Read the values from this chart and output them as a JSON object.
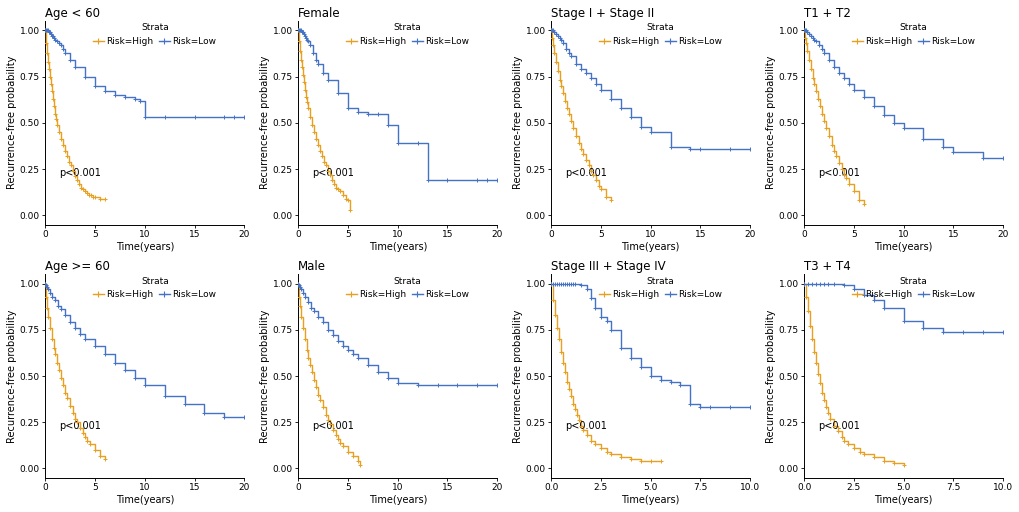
{
  "panels": [
    {
      "title": "Age < 60",
      "xlabel": "Time(years)",
      "ylabel": "Recurrence-free probability",
      "xlim": [
        0,
        20
      ],
      "xticks": [
        0,
        5,
        10,
        15,
        20
      ],
      "ylim": [
        -0.05,
        1.05
      ],
      "yticks": [
        0.0,
        0.25,
        0.5,
        0.75,
        1.0
      ],
      "pvalue": "p<0.001",
      "high_t": [
        0,
        0.1,
        0.2,
        0.3,
        0.4,
        0.5,
        0.6,
        0.7,
        0.8,
        0.9,
        1.0,
        1.1,
        1.2,
        1.4,
        1.6,
        1.8,
        2.0,
        2.2,
        2.4,
        2.6,
        2.8,
        3.0,
        3.2,
        3.4,
        3.6,
        3.8,
        4.0,
        4.2,
        4.4,
        4.6,
        4.8,
        5.0,
        5.5,
        6.0
      ],
      "high_s": [
        1.0,
        0.93,
        0.88,
        0.83,
        0.79,
        0.75,
        0.71,
        0.67,
        0.63,
        0.59,
        0.55,
        0.52,
        0.49,
        0.45,
        0.41,
        0.38,
        0.35,
        0.32,
        0.29,
        0.27,
        0.24,
        0.21,
        0.19,
        0.17,
        0.15,
        0.14,
        0.13,
        0.12,
        0.11,
        0.11,
        0.1,
        0.1,
        0.09,
        0.09
      ],
      "low_t": [
        0,
        0.1,
        0.2,
        0.3,
        0.4,
        0.5,
        0.6,
        0.7,
        0.8,
        0.9,
        1.0,
        1.2,
        1.4,
        1.6,
        1.8,
        2.0,
        2.5,
        3.0,
        4.0,
        5.0,
        6.0,
        7.0,
        8.0,
        9.0,
        9.5,
        10.0,
        12.0,
        15.0,
        18.0,
        19.0,
        20.0
      ],
      "low_s": [
        1.0,
        1.0,
        1.0,
        1.0,
        0.99,
        0.99,
        0.98,
        0.97,
        0.97,
        0.96,
        0.95,
        0.94,
        0.93,
        0.92,
        0.9,
        0.88,
        0.84,
        0.8,
        0.75,
        0.7,
        0.67,
        0.65,
        0.64,
        0.63,
        0.62,
        0.53,
        0.53,
        0.53,
        0.53,
        0.53,
        0.53
      ]
    },
    {
      "title": "Female",
      "xlabel": "Time(years)",
      "ylabel": "Recurrence-free probability",
      "xlim": [
        0,
        20
      ],
      "xticks": [
        0,
        5,
        10,
        15,
        20
      ],
      "ylim": [
        -0.05,
        1.05
      ],
      "yticks": [
        0.0,
        0.25,
        0.5,
        0.75,
        1.0
      ],
      "pvalue": "p<0.001",
      "high_t": [
        0,
        0.1,
        0.2,
        0.3,
        0.4,
        0.5,
        0.6,
        0.7,
        0.8,
        0.9,
        1.0,
        1.2,
        1.4,
        1.6,
        1.8,
        2.0,
        2.2,
        2.4,
        2.6,
        2.8,
        3.0,
        3.2,
        3.4,
        3.6,
        3.8,
        4.0,
        4.2,
        4.5,
        4.8,
        5.0,
        5.2
      ],
      "high_s": [
        1.0,
        0.94,
        0.89,
        0.84,
        0.8,
        0.76,
        0.72,
        0.68,
        0.64,
        0.61,
        0.58,
        0.53,
        0.49,
        0.45,
        0.41,
        0.38,
        0.35,
        0.32,
        0.29,
        0.27,
        0.24,
        0.22,
        0.19,
        0.17,
        0.15,
        0.14,
        0.13,
        0.11,
        0.09,
        0.08,
        0.03
      ],
      "low_t": [
        0,
        0.1,
        0.2,
        0.3,
        0.4,
        0.5,
        0.6,
        0.7,
        0.8,
        0.9,
        1.0,
        1.2,
        1.5,
        1.8,
        2.0,
        2.5,
        3.0,
        4.0,
        5.0,
        6.0,
        7.0,
        8.0,
        9.0,
        10.0,
        12.0,
        13.0,
        15.0,
        18.0,
        19.0,
        20.0
      ],
      "low_s": [
        1.0,
        1.0,
        1.0,
        1.0,
        0.99,
        0.99,
        0.98,
        0.97,
        0.96,
        0.95,
        0.94,
        0.92,
        0.88,
        0.84,
        0.82,
        0.77,
        0.73,
        0.66,
        0.58,
        0.56,
        0.55,
        0.55,
        0.49,
        0.39,
        0.39,
        0.19,
        0.19,
        0.19,
        0.19,
        0.19
      ]
    },
    {
      "title": "Stage I + Stage II",
      "xlabel": "Time(years)",
      "ylabel": "Recurrence-free probability",
      "xlim": [
        0,
        20
      ],
      "xticks": [
        0,
        5,
        10,
        15,
        20
      ],
      "ylim": [
        -0.05,
        1.05
      ],
      "yticks": [
        0.0,
        0.25,
        0.5,
        0.75,
        1.0
      ],
      "pvalue": "p<0.001",
      "high_t": [
        0,
        0.1,
        0.2,
        0.3,
        0.5,
        0.7,
        0.9,
        1.0,
        1.2,
        1.4,
        1.6,
        1.8,
        2.0,
        2.2,
        2.5,
        2.8,
        3.0,
        3.2,
        3.5,
        3.8,
        4.0,
        4.2,
        4.5,
        4.8,
        5.0,
        5.5,
        6.0
      ],
      "high_s": [
        1.0,
        0.96,
        0.92,
        0.88,
        0.83,
        0.78,
        0.73,
        0.7,
        0.66,
        0.62,
        0.58,
        0.55,
        0.51,
        0.47,
        0.43,
        0.39,
        0.36,
        0.33,
        0.3,
        0.27,
        0.24,
        0.22,
        0.19,
        0.16,
        0.14,
        0.1,
        0.08
      ],
      "low_t": [
        0,
        0.1,
        0.2,
        0.3,
        0.5,
        0.7,
        0.9,
        1.0,
        1.2,
        1.5,
        1.8,
        2.0,
        2.5,
        3.0,
        3.5,
        4.0,
        4.5,
        5.0,
        6.0,
        7.0,
        8.0,
        9.0,
        10.0,
        12.0,
        14.0,
        15.0,
        18.0,
        20.0
      ],
      "low_s": [
        1.0,
        1.0,
        1.0,
        0.99,
        0.98,
        0.97,
        0.96,
        0.95,
        0.93,
        0.9,
        0.88,
        0.86,
        0.82,
        0.79,
        0.77,
        0.74,
        0.71,
        0.68,
        0.63,
        0.58,
        0.53,
        0.48,
        0.45,
        0.37,
        0.36,
        0.36,
        0.36,
        0.36
      ]
    },
    {
      "title": "T1 + T2",
      "xlabel": "Time(years)",
      "ylabel": "Recurrence-free probability",
      "xlim": [
        0,
        20
      ],
      "xticks": [
        0,
        5,
        10,
        15,
        20
      ],
      "ylim": [
        -0.05,
        1.05
      ],
      "yticks": [
        0.0,
        0.25,
        0.5,
        0.75,
        1.0
      ],
      "pvalue": "p<0.001",
      "high_t": [
        0,
        0.1,
        0.2,
        0.3,
        0.5,
        0.7,
        0.9,
        1.0,
        1.2,
        1.4,
        1.6,
        1.8,
        2.0,
        2.2,
        2.5,
        2.8,
        3.0,
        3.2,
        3.5,
        3.8,
        4.0,
        4.2,
        4.5,
        5.0,
        5.5,
        6.0
      ],
      "high_s": [
        1.0,
        0.96,
        0.93,
        0.89,
        0.84,
        0.79,
        0.74,
        0.71,
        0.67,
        0.63,
        0.59,
        0.55,
        0.51,
        0.47,
        0.43,
        0.38,
        0.35,
        0.32,
        0.28,
        0.25,
        0.22,
        0.2,
        0.17,
        0.13,
        0.08,
        0.06
      ],
      "low_t": [
        0,
        0.1,
        0.2,
        0.3,
        0.5,
        0.7,
        0.9,
        1.0,
        1.2,
        1.5,
        1.8,
        2.0,
        2.5,
        3.0,
        3.5,
        4.0,
        4.5,
        5.0,
        6.0,
        7.0,
        8.0,
        9.0,
        10.0,
        12.0,
        14.0,
        15.0,
        18.0,
        20.0
      ],
      "low_s": [
        1.0,
        1.0,
        1.0,
        0.99,
        0.98,
        0.97,
        0.96,
        0.95,
        0.94,
        0.92,
        0.9,
        0.88,
        0.84,
        0.8,
        0.77,
        0.74,
        0.71,
        0.68,
        0.64,
        0.59,
        0.54,
        0.5,
        0.47,
        0.41,
        0.37,
        0.34,
        0.31,
        0.31
      ]
    },
    {
      "title": "Age >= 60",
      "xlabel": "Time(years)",
      "ylabel": "Recurrence-free probability",
      "xlim": [
        0,
        20
      ],
      "xticks": [
        0,
        5,
        10,
        15,
        20
      ],
      "ylim": [
        -0.05,
        1.05
      ],
      "yticks": [
        0.0,
        0.25,
        0.5,
        0.75,
        1.0
      ],
      "pvalue": "p<0.001",
      "high_t": [
        0,
        0.1,
        0.2,
        0.3,
        0.5,
        0.7,
        0.9,
        1.0,
        1.2,
        1.4,
        1.6,
        1.8,
        2.0,
        2.2,
        2.5,
        2.8,
        3.0,
        3.2,
        3.5,
        3.8,
        4.0,
        4.2,
        4.5,
        5.0,
        5.5,
        6.0
      ],
      "high_s": [
        1.0,
        0.93,
        0.87,
        0.82,
        0.76,
        0.7,
        0.65,
        0.62,
        0.57,
        0.53,
        0.49,
        0.45,
        0.41,
        0.38,
        0.34,
        0.3,
        0.27,
        0.25,
        0.22,
        0.19,
        0.17,
        0.15,
        0.13,
        0.1,
        0.07,
        0.05
      ],
      "low_t": [
        0,
        0.1,
        0.2,
        0.3,
        0.5,
        0.7,
        1.0,
        1.3,
        1.6,
        2.0,
        2.5,
        3.0,
        3.5,
        4.0,
        5.0,
        6.0,
        7.0,
        8.0,
        9.0,
        10.0,
        12.0,
        14.0,
        16.0,
        18.0,
        20.0
      ],
      "low_s": [
        1.0,
        0.99,
        0.98,
        0.97,
        0.95,
        0.93,
        0.91,
        0.88,
        0.86,
        0.83,
        0.79,
        0.76,
        0.73,
        0.7,
        0.66,
        0.62,
        0.57,
        0.53,
        0.49,
        0.45,
        0.39,
        0.35,
        0.3,
        0.28,
        0.28
      ]
    },
    {
      "title": "Male",
      "xlabel": "Time(years)",
      "ylabel": "Recurrence-free probability",
      "xlim": [
        0,
        20
      ],
      "xticks": [
        0,
        5,
        10,
        15,
        20
      ],
      "ylim": [
        -0.05,
        1.05
      ],
      "yticks": [
        0.0,
        0.25,
        0.5,
        0.75,
        1.0
      ],
      "pvalue": "p<0.001",
      "high_t": [
        0,
        0.1,
        0.2,
        0.3,
        0.5,
        0.7,
        0.9,
        1.0,
        1.2,
        1.4,
        1.6,
        1.8,
        2.0,
        2.2,
        2.5,
        2.8,
        3.0,
        3.2,
        3.5,
        3.8,
        4.0,
        4.2,
        4.5,
        5.0,
        5.5,
        6.0,
        6.2
      ],
      "high_s": [
        1.0,
        0.93,
        0.88,
        0.82,
        0.76,
        0.7,
        0.64,
        0.6,
        0.56,
        0.52,
        0.48,
        0.44,
        0.4,
        0.37,
        0.33,
        0.29,
        0.26,
        0.24,
        0.21,
        0.18,
        0.16,
        0.14,
        0.12,
        0.09,
        0.07,
        0.04,
        0.02
      ],
      "low_t": [
        0,
        0.1,
        0.2,
        0.3,
        0.5,
        0.7,
        1.0,
        1.3,
        1.6,
        2.0,
        2.5,
        3.0,
        3.5,
        4.0,
        4.5,
        5.0,
        5.5,
        6.0,
        7.0,
        8.0,
        9.0,
        10.0,
        12.0,
        14.0,
        16.0,
        18.0,
        20.0
      ],
      "low_s": [
        1.0,
        0.99,
        0.98,
        0.97,
        0.95,
        0.93,
        0.9,
        0.87,
        0.85,
        0.82,
        0.79,
        0.75,
        0.72,
        0.69,
        0.66,
        0.64,
        0.62,
        0.6,
        0.56,
        0.52,
        0.49,
        0.46,
        0.45,
        0.45,
        0.45,
        0.45,
        0.45
      ]
    },
    {
      "title": "Stage III + Stage IV",
      "xlabel": "Time(years)",
      "ylabel": "Recurrence-free probability",
      "xlim": [
        0,
        10
      ],
      "xticks": [
        0,
        2.5,
        5.0,
        7.5,
        10.0
      ],
      "ylim": [
        -0.05,
        1.05
      ],
      "yticks": [
        0.0,
        0.25,
        0.5,
        0.75,
        1.0
      ],
      "pvalue": "p<0.001",
      "high_t": [
        0,
        0.1,
        0.2,
        0.3,
        0.4,
        0.5,
        0.6,
        0.7,
        0.8,
        0.9,
        1.0,
        1.1,
        1.2,
        1.3,
        1.4,
        1.5,
        1.6,
        1.8,
        2.0,
        2.2,
        2.5,
        2.8,
        3.0,
        3.5,
        4.0,
        4.5,
        5.0,
        5.5
      ],
      "high_s": [
        1.0,
        0.91,
        0.83,
        0.76,
        0.7,
        0.63,
        0.57,
        0.52,
        0.47,
        0.43,
        0.39,
        0.35,
        0.32,
        0.29,
        0.26,
        0.23,
        0.21,
        0.18,
        0.15,
        0.13,
        0.11,
        0.09,
        0.08,
        0.06,
        0.05,
        0.04,
        0.04,
        0.04
      ],
      "low_t": [
        0,
        0.1,
        0.2,
        0.3,
        0.4,
        0.5,
        0.6,
        0.7,
        0.8,
        0.9,
        1.0,
        1.1,
        1.2,
        1.5,
        1.8,
        2.0,
        2.2,
        2.5,
        2.8,
        3.0,
        3.5,
        4.0,
        4.5,
        5.0,
        5.5,
        6.0,
        6.5,
        7.0,
        7.5,
        8.0,
        9.0,
        10.0
      ],
      "low_s": [
        1.0,
        1.0,
        1.0,
        1.0,
        1.0,
        1.0,
        1.0,
        1.0,
        1.0,
        1.0,
        1.0,
        1.0,
        1.0,
        0.99,
        0.97,
        0.92,
        0.87,
        0.82,
        0.8,
        0.75,
        0.65,
        0.6,
        0.55,
        0.5,
        0.48,
        0.47,
        0.45,
        0.35,
        0.33,
        0.33,
        0.33,
        0.33
      ]
    },
    {
      "title": "T3 + T4",
      "xlabel": "Time(years)",
      "ylabel": "Recurrence-free probability",
      "xlim": [
        0,
        10
      ],
      "xticks": [
        0,
        2.5,
        5.0,
        7.5,
        10.0
      ],
      "ylim": [
        -0.05,
        1.05
      ],
      "yticks": [
        0.0,
        0.25,
        0.5,
        0.75,
        1.0
      ],
      "pvalue": "p<0.001",
      "high_t": [
        0,
        0.1,
        0.2,
        0.3,
        0.4,
        0.5,
        0.6,
        0.7,
        0.8,
        0.9,
        1.0,
        1.1,
        1.2,
        1.3,
        1.5,
        1.7,
        1.9,
        2.0,
        2.2,
        2.5,
        2.8,
        3.0,
        3.5,
        4.0,
        4.5,
        5.0
      ],
      "high_s": [
        1.0,
        0.93,
        0.85,
        0.77,
        0.7,
        0.63,
        0.57,
        0.51,
        0.46,
        0.41,
        0.37,
        0.33,
        0.3,
        0.27,
        0.23,
        0.2,
        0.17,
        0.15,
        0.13,
        0.11,
        0.09,
        0.08,
        0.06,
        0.04,
        0.03,
        0.02
      ],
      "low_t": [
        0,
        0.2,
        0.4,
        0.6,
        0.8,
        1.0,
        1.2,
        1.5,
        2.0,
        2.5,
        3.0,
        3.5,
        4.0,
        5.0,
        6.0,
        7.0,
        8.0,
        9.0,
        10.0
      ],
      "low_s": [
        1.0,
        1.0,
        1.0,
        1.0,
        1.0,
        1.0,
        1.0,
        1.0,
        0.99,
        0.97,
        0.94,
        0.91,
        0.87,
        0.8,
        0.76,
        0.74,
        0.74,
        0.74,
        0.74
      ]
    }
  ],
  "color_high": "#E8A020",
  "color_low": "#4472C4",
  "background_color": "#ffffff",
  "tick_fontsize": 6.5,
  "label_fontsize": 7,
  "title_fontsize": 8.5,
  "pvalue_fontsize": 7,
  "legend_fontsize": 6.5,
  "linewidth": 1.0
}
